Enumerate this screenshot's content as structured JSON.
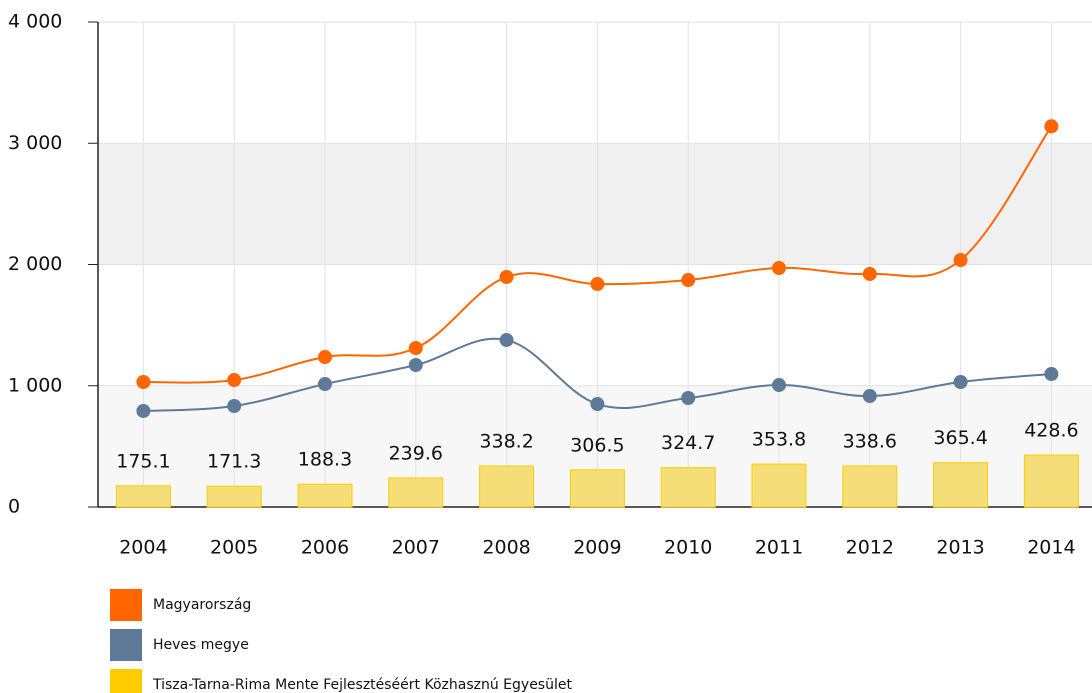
{
  "chart_data": {
    "type": "line",
    "categories": [
      "2004",
      "2005",
      "2006",
      "2007",
      "2008",
      "2009",
      "2010",
      "2011",
      "2012",
      "2013",
      "2014"
    ],
    "series": [
      {
        "name": "Magyarország",
        "color": "#ff6600",
        "type": "line",
        "values": [
          1031,
          1047,
          1237,
          1311,
          1897,
          1839,
          1872,
          1971,
          1922,
          2037,
          3140
        ]
      },
      {
        "name": "Heves megye",
        "color": "#5f7a99",
        "type": "line",
        "values": [
          792,
          833,
          1014,
          1171,
          1377,
          849,
          899,
          1006,
          915,
          1031,
          1097
        ]
      },
      {
        "name": "Tisza-Tarna-Rima Mente Fejlesztéséért Közhasznú Egyesület",
        "color": "#ffcc00",
        "type": "bar",
        "values": [
          175.1,
          171.3,
          188.3,
          239.6,
          338.2,
          306.5,
          324.7,
          353.8,
          338.6,
          365.4,
          428.6
        ]
      }
    ],
    "ylim": [
      0,
      4000
    ],
    "yticks": [
      0,
      {
        "value": 1000,
        "label": "1 000"
      },
      {
        "value": 2000,
        "label": "2 000"
      },
      {
        "value": 3000,
        "label": "3 000"
      },
      {
        "value": 4000,
        "label": "4 000"
      }
    ],
    "grid": true
  }
}
